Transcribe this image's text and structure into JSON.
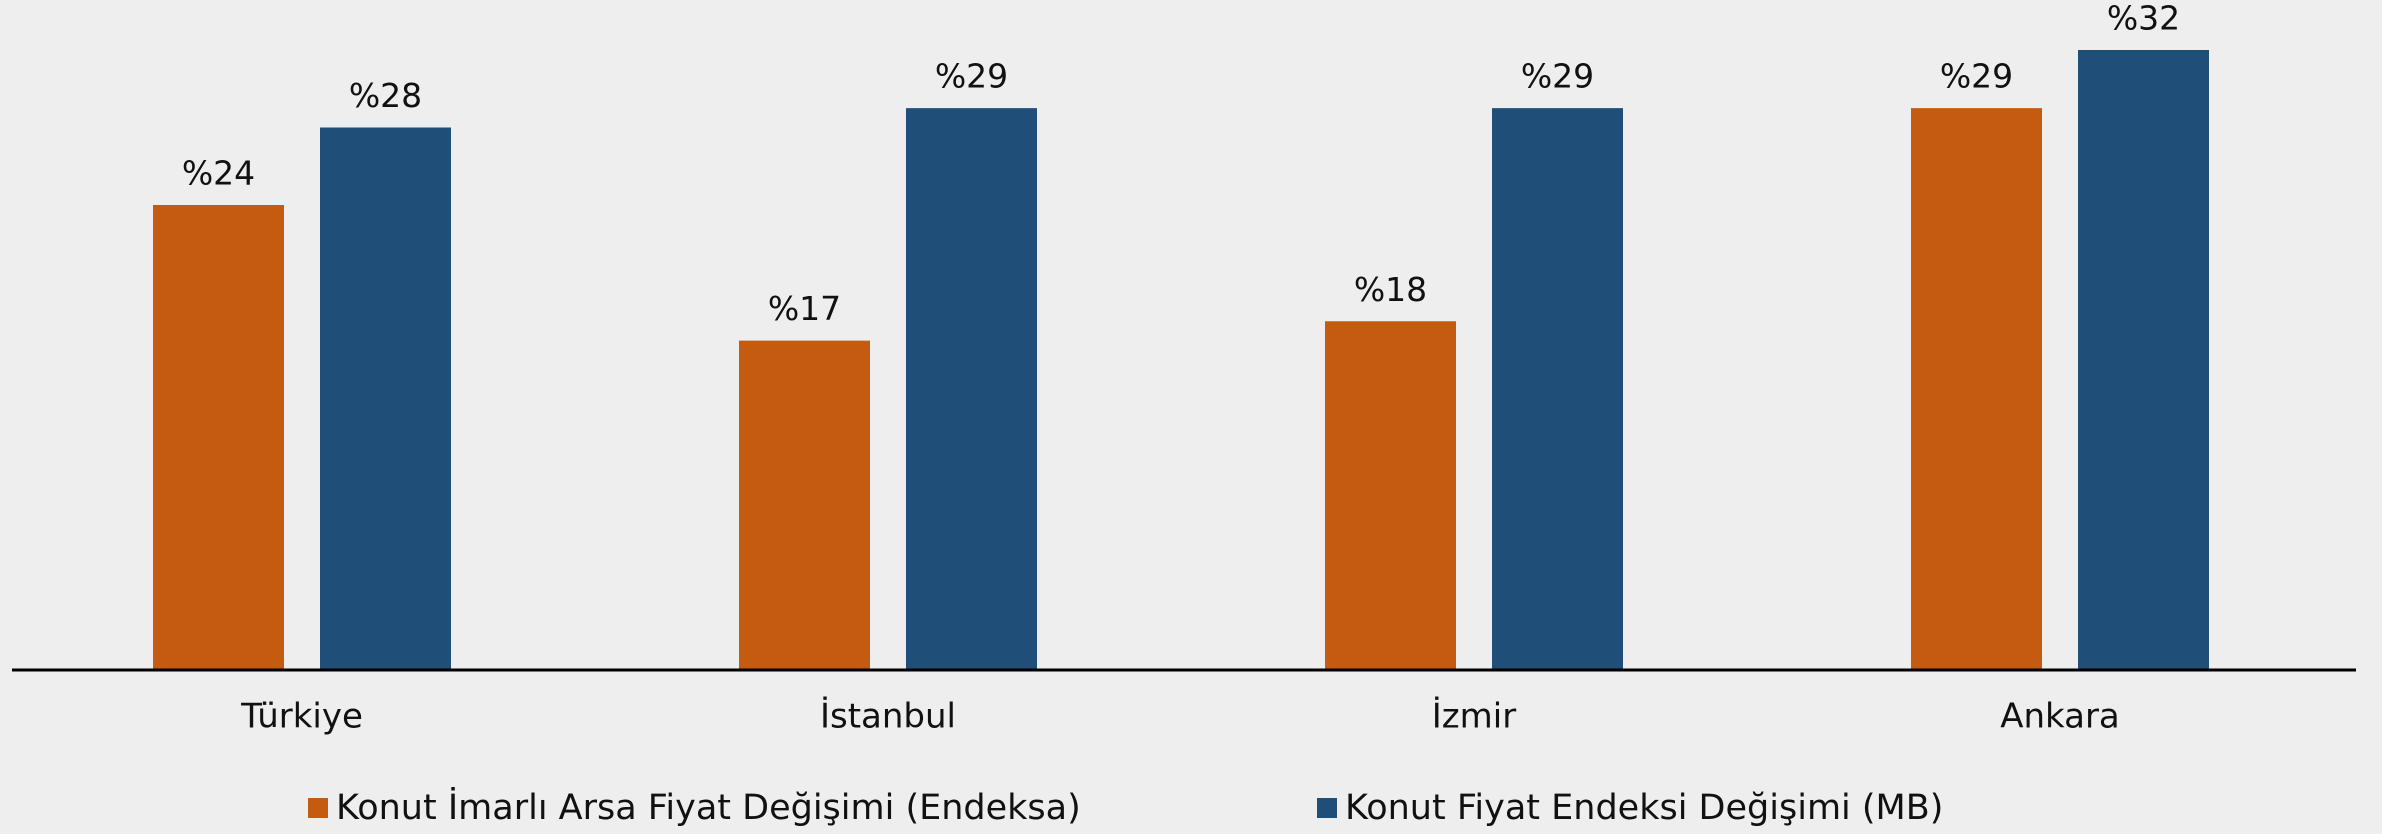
{
  "chart_data": {
    "type": "bar",
    "categories": [
      "Türkiye",
      "İstanbul",
      "İzmir",
      "Ankara"
    ],
    "series": [
      {
        "name": "Konut İmarlı Arsa Fiyat Değişimi (Endeksa)",
        "color": "#c55a11",
        "values": [
          24,
          17,
          18,
          29
        ],
        "value_labels": [
          "%24",
          "%17",
          "%18",
          "%29"
        ]
      },
      {
        "name": "Konut Fiyat Endeksi Değişimi (MB)",
        "color": "#1f4e79",
        "values": [
          28,
          29,
          29,
          32
        ],
        "value_labels": [
          "%28",
          "%29",
          "%29",
          "%32"
        ]
      }
    ],
    "ylim": [
      0,
      32
    ],
    "legend": "bottom"
  }
}
